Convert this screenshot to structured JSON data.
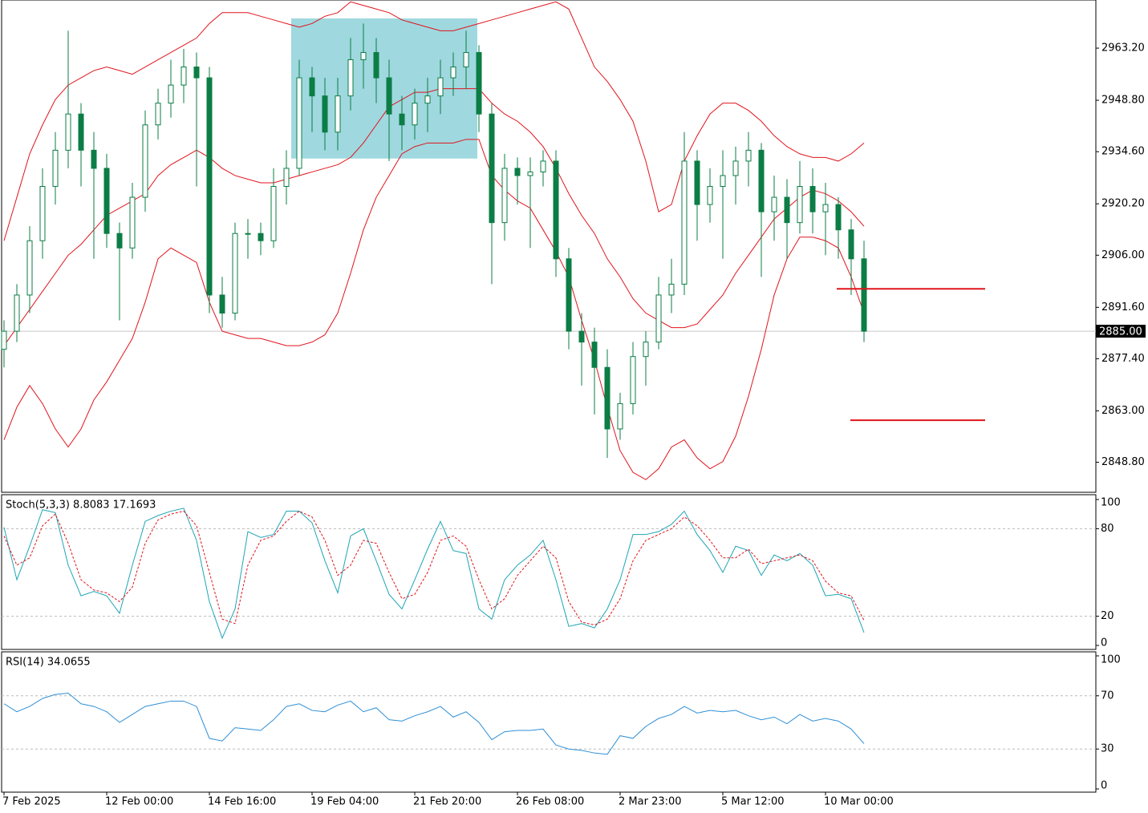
{
  "chart_data": [
    {
      "type": "candlestick",
      "categories": [
        "7 Feb 2025",
        null,
        null,
        null,
        null,
        null,
        null,
        null,
        "12 Feb 00:00",
        null,
        null,
        null,
        null,
        null,
        null,
        null,
        "14 Feb 16:00",
        null,
        null,
        null,
        null,
        null,
        null,
        null,
        "19 Feb 04:00",
        null,
        null,
        null,
        null,
        null,
        null,
        null,
        "21 Feb 20:00",
        null,
        null,
        null,
        null,
        null,
        null,
        null,
        "26 Feb 08:00",
        null,
        null,
        null,
        null,
        null,
        null,
        null,
        "2 Mar 23:00",
        null,
        null,
        null,
        null,
        null,
        null,
        null,
        "5 Mar 12:00",
        null,
        null,
        null,
        null,
        null,
        null,
        null,
        "10 Mar 00:00",
        null,
        null,
        null
      ],
      "open": [
        2880,
        2885,
        2895,
        2910,
        2925,
        2935,
        2945,
        2935,
        2930,
        2912,
        2908,
        2922,
        2942,
        2948,
        2953,
        2958,
        2955,
        2895,
        2890,
        2912,
        2912,
        2910,
        2925,
        2930,
        2955,
        2950,
        2940,
        2950,
        2960,
        2962,
        2955,
        2945,
        2942,
        2948,
        2950,
        2955,
        2958,
        2962,
        2945,
        2915,
        2930,
        2928,
        2929,
        2932,
        2905,
        2885,
        2882,
        2875,
        2858,
        2865,
        2878,
        2882,
        2895,
        2898,
        2932,
        2920,
        2925,
        2928,
        2932,
        2935,
        2918,
        2922,
        2915,
        2925,
        2918,
        2920,
        2913,
        2905
      ],
      "high": [
        2888,
        2898,
        2914,
        2930,
        2940,
        2968,
        2948,
        2940,
        2934,
        2915,
        2926,
        2946,
        2952,
        2960,
        2963,
        2962,
        2958,
        2900,
        2915,
        2916,
        2915,
        2930,
        2935,
        2960,
        2958,
        2955,
        2955,
        2966,
        2970,
        2966,
        2960,
        2950,
        2952,
        2955,
        2960,
        2962,
        2968,
        2964,
        2948,
        2934,
        2933,
        2933,
        2935,
        2935,
        2908,
        2890,
        2886,
        2880,
        2868,
        2882,
        2885,
        2900,
        2905,
        2940,
        2935,
        2930,
        2935,
        2936,
        2940,
        2937,
        2928,
        2927,
        2932,
        2930,
        2926,
        2922,
        2916,
        2910
      ],
      "low": [
        2875,
        2882,
        2890,
        2905,
        2920,
        2930,
        2925,
        2905,
        2908,
        2888,
        2905,
        2918,
        2938,
        2944,
        2948,
        2925,
        2890,
        2886,
        2888,
        2905,
        2906,
        2908,
        2920,
        2928,
        2940,
        2935,
        2935,
        2946,
        2952,
        2948,
        2932,
        2935,
        2938,
        2940,
        2945,
        2950,
        2952,
        2940,
        2898,
        2910,
        2920,
        2908,
        2925,
        2900,
        2880,
        2870,
        2862,
        2850,
        2855,
        2862,
        2870,
        2880,
        2890,
        2895,
        2910,
        2915,
        2905,
        2920,
        2925,
        2900,
        2910,
        2905,
        2912,
        2912,
        2906,
        2905,
        2895,
        2882
      ],
      "close": [
        2885,
        2895,
        2910,
        2925,
        2935,
        2945,
        2935,
        2930,
        2912,
        2908,
        2922,
        2942,
        2948,
        2953,
        2958,
        2955,
        2895,
        2890,
        2912,
        2912,
        2910,
        2925,
        2930,
        2955,
        2950,
        2940,
        2950,
        2960,
        2962,
        2955,
        2945,
        2942,
        2948,
        2950,
        2955,
        2958,
        2962,
        2945,
        2915,
        2930,
        2928,
        2929,
        2932,
        2905,
        2885,
        2882,
        2875,
        2858,
        2865,
        2878,
        2882,
        2895,
        2898,
        2932,
        2920,
        2925,
        2928,
        2932,
        2935,
        2918,
        2922,
        2915,
        2925,
        2918,
        2920,
        2913,
        2905,
        2885
      ],
      "up_color": "#ffffff",
      "down_color": "#0b7d45",
      "wick_color": "#0b7d45",
      "bollinger": {
        "color": "#e0141c",
        "upper": [
          2910,
          2922,
          2934,
          2942,
          2949,
          2953,
          2955,
          2957,
          2958,
          2957,
          2956,
          2958,
          2960,
          2962,
          2964,
          2966,
          2970,
          2973,
          2973,
          2973,
          2972,
          2971,
          2970,
          2969,
          2970,
          2972,
          2973,
          2976,
          2975,
          2974,
          2973,
          2971,
          2970,
          2969,
          2968,
          2968,
          2969,
          2970,
          2971,
          2972,
          2973,
          2974,
          2975,
          2976,
          2974,
          2966,
          2958,
          2954,
          2949,
          2943,
          2932,
          2918,
          2920,
          2932,
          2939,
          2945,
          2948,
          2948,
          2946,
          2943,
          2939,
          2936,
          2934,
          2933,
          2933,
          2932,
          2934,
          2937
        ],
        "middle": [
          2881,
          2886,
          2891,
          2896,
          2901,
          2906,
          2909,
          2913,
          2917,
          2919,
          2921,
          2923,
          2928,
          2931,
          2933,
          2935,
          2933,
          2930,
          2928,
          2927,
          2926,
          2926,
          2927,
          2928,
          2929,
          2930,
          2931,
          2933,
          2937,
          2942,
          2947,
          2949,
          2951,
          2951,
          2952,
          2952,
          2952,
          2952,
          2948,
          2945,
          2943,
          2940,
          2936,
          2930,
          2923,
          2917,
          2912,
          2905,
          2900,
          2894,
          2890,
          2888,
          2886,
          2886,
          2887,
          2891,
          2895,
          2901,
          2906,
          2911,
          2916,
          2919,
          2922,
          2924,
          2923,
          2921,
          2918,
          2914
        ],
        "lower": [
          2855,
          2864,
          2870,
          2865,
          2858,
          2853,
          2858,
          2866,
          2871,
          2877,
          2883,
          2893,
          2905,
          2908,
          2906,
          2904,
          2893,
          2885,
          2884,
          2883,
          2883,
          2882,
          2881,
          2881,
          2882,
          2884,
          2890,
          2901,
          2913,
          2922,
          2928,
          2934,
          2936,
          2937,
          2937,
          2937,
          2938,
          2938,
          2928,
          2924,
          2921,
          2919,
          2913,
          2907,
          2900,
          2888,
          2877,
          2864,
          2852,
          2846,
          2844,
          2847,
          2853,
          2855,
          2850,
          2847,
          2849,
          2856,
          2867,
          2880,
          2895,
          2905,
          2911,
          2911,
          2910,
          2908,
          2900,
          2890
        ]
      },
      "highlight": {
        "low": 2932.7,
        "high": 2971.4,
        "color": "#9fd8df"
      },
      "levels": [
        {
          "value": 2896.7,
          "color": "#e0141c"
        },
        {
          "value": 2860.4,
          "color": "#e0141c"
        }
      ],
      "current_price": {
        "value": 2885,
        "label": "2885.00"
      },
      "ylim": [
        2840.5,
        2976.5
      ],
      "yticks": [
        {
          "value": 2848.8,
          "label": "2848.80"
        },
        {
          "value": 2863,
          "label": "2863.00"
        },
        {
          "value": 2877.4,
          "label": "2877.40"
        },
        {
          "value": 2891.6,
          "label": "2891.60"
        },
        {
          "value": 2906,
          "label": "2906.00"
        },
        {
          "value": 2920.2,
          "label": "2920.20"
        },
        {
          "value": 2934.6,
          "label": "2934.60"
        },
        {
          "value": 2948.8,
          "label": "2948.80"
        },
        {
          "value": 2963.2,
          "label": "2963.20"
        }
      ]
    },
    {
      "type": "line",
      "title": "Stoch(5,3,3) 8.8083 17.1693",
      "series": [
        {
          "color": "#1ea5b5",
          "dashed": false,
          "values": [
            81,
            45,
            68,
            93,
            91,
            55,
            34,
            37,
            34,
            22,
            55,
            85,
            89,
            92,
            94,
            72,
            30,
            5,
            25,
            78,
            74,
            76,
            92,
            92,
            84,
            58,
            36,
            75,
            80,
            58,
            35,
            25,
            45,
            66,
            85,
            65,
            63,
            25,
            18,
            45,
            55,
            62,
            72,
            45,
            13,
            15,
            12,
            25,
            45,
            76,
            76,
            78,
            83,
            92,
            76,
            65,
            50,
            68,
            65,
            48,
            62,
            58,
            63,
            55,
            34,
            35,
            32,
            8.8083
          ]
        },
        {
          "color": "#e0141c",
          "dashed": true,
          "values": [
            75,
            55,
            60,
            82,
            90,
            70,
            45,
            38,
            36,
            30,
            40,
            70,
            86,
            90,
            92,
            82,
            50,
            18,
            15,
            55,
            72,
            75,
            85,
            92,
            88,
            72,
            48,
            55,
            72,
            70,
            50,
            32,
            35,
            50,
            72,
            75,
            68,
            45,
            25,
            32,
            48,
            58,
            68,
            60,
            30,
            16,
            14,
            18,
            32,
            58,
            72,
            76,
            80,
            88,
            82,
            72,
            60,
            60,
            66,
            56,
            58,
            60,
            62,
            58,
            44,
            36,
            34,
            17.1693
          ]
        }
      ],
      "ylim": [
        0,
        100
      ],
      "yticks": [
        0,
        20,
        80,
        100
      ],
      "levels": [
        20,
        80
      ]
    },
    {
      "type": "line",
      "title": "RSI(14) 34.0655",
      "series": [
        {
          "color": "#2e8fd6",
          "dashed": false,
          "values": [
            64,
            58,
            62,
            68,
            71,
            72,
            64,
            62,
            58,
            50,
            56,
            62,
            64,
            66,
            66,
            62,
            38,
            36,
            46,
            45,
            44,
            52,
            62,
            64,
            59,
            58,
            63,
            66,
            58,
            61,
            52,
            51,
            55,
            58,
            62,
            54,
            58,
            50,
            37,
            43,
            44,
            44,
            45,
            33,
            30,
            29,
            27,
            26,
            40,
            38,
            47,
            53,
            56,
            62,
            57,
            59,
            58,
            59,
            55,
            52,
            54,
            49,
            56,
            51,
            53,
            51,
            45,
            34.0655
          ]
        }
      ],
      "ylim": [
        0,
        100
      ],
      "yticks": [
        0,
        30,
        70,
        100
      ],
      "levels": [
        30,
        70
      ]
    }
  ]
}
